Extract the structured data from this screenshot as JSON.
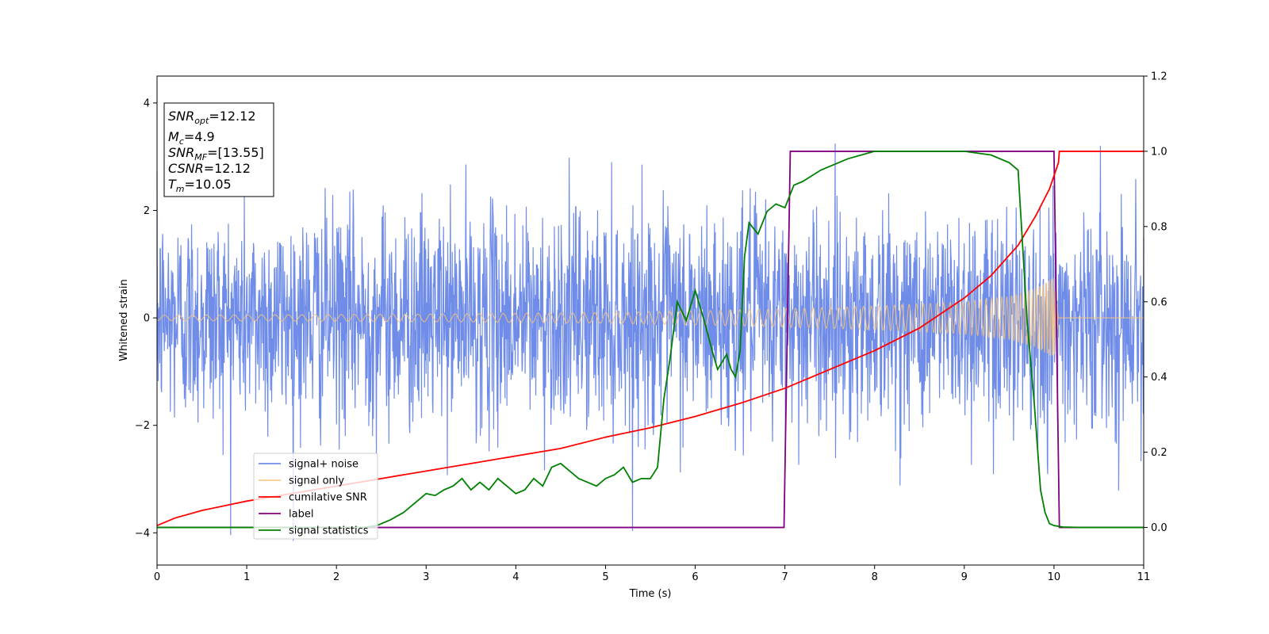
{
  "chart_data": {
    "type": "line",
    "xlabel": "Time (s)",
    "ylabel": "Whitened strain",
    "xlim": [
      0,
      11
    ],
    "ylim": [
      -4.6,
      4.5
    ],
    "y2lim": [
      -0.1,
      1.2
    ],
    "x_ticks": [
      0,
      1,
      2,
      3,
      4,
      5,
      6,
      7,
      8,
      9,
      10,
      11
    ],
    "x_tick_labels": [
      "0",
      "1",
      "2",
      "3",
      "4",
      "5",
      "6",
      "7",
      "8",
      "9",
      "10",
      "11"
    ],
    "y_ticks": [
      -4,
      -2,
      0,
      2,
      4
    ],
    "y_tick_labels": [
      "−4",
      "−2",
      "0",
      "2",
      "4"
    ],
    "y2_ticks": [
      0.0,
      0.2,
      0.4,
      0.6,
      0.8,
      1.0,
      1.2
    ],
    "y2_tick_labels": [
      "0.0",
      "0.2",
      "0.4",
      "0.6",
      "0.8",
      "1.0",
      "1.2"
    ],
    "grid": false,
    "legend_position": "lower-left",
    "info_box": {
      "snr_opt": {
        "main": "SNR",
        "sub": "opt",
        "rest": "=12.12"
      },
      "mc": {
        "main": "M",
        "sub": "c",
        "rest": "=4.9"
      },
      "snr_mf": {
        "main": "SNR",
        "sub": "MF",
        "rest": "=[13.55]"
      },
      "csnr": {
        "main": "CSNR",
        "rest": "=12.12"
      },
      "tm": {
        "main": "T",
        "sub": "m",
        "rest": "=10.05"
      }
    },
    "series": [
      {
        "name": "signal+ noise",
        "axis": "left",
        "color": "#6f8ce8",
        "kind": "gaussian noise plus chirp, standard deviation about 1.0, ends at t = 11",
        "noise_std": 1.0,
        "x_end": 11
      },
      {
        "name": "signal only",
        "axis": "left",
        "color": "#f5c27a",
        "kind": "chirp with growing amplitude, merging at t = 10.05, zero afterwards",
        "merger_time": 10.05,
        "amplitude_points": [
          [
            0,
            0.05
          ],
          [
            3,
            0.07
          ],
          [
            5,
            0.1
          ],
          [
            6,
            0.13
          ],
          [
            7,
            0.17
          ],
          [
            8,
            0.22
          ],
          [
            9,
            0.3
          ],
          [
            9.5,
            0.4
          ],
          [
            9.8,
            0.55
          ],
          [
            10.0,
            0.75
          ],
          [
            10.05,
            0.0
          ]
        ]
      },
      {
        "name": "cumilative SNR",
        "axis": "right",
        "color": "#ff0000",
        "x": [
          0,
          0.05,
          0.2,
          0.5,
          1,
          1.5,
          2,
          2.5,
          3,
          3.5,
          4,
          4.5,
          5,
          5.5,
          6,
          6.5,
          7,
          7.5,
          8,
          8.5,
          9,
          9.3,
          9.6,
          9.8,
          9.95,
          10.05,
          10.06,
          11
        ],
        "y": [
          0.005,
          0.01,
          0.025,
          0.045,
          0.07,
          0.09,
          0.11,
          0.13,
          0.15,
          0.17,
          0.19,
          0.21,
          0.24,
          0.265,
          0.295,
          0.33,
          0.37,
          0.42,
          0.47,
          0.53,
          0.61,
          0.67,
          0.75,
          0.83,
          0.9,
          0.97,
          1.0,
          1.0
        ]
      },
      {
        "name": "label",
        "axis": "right",
        "color": "#800080",
        "x": [
          0,
          6.99,
          7.06,
          10.0,
          10.06,
          11
        ],
        "y": [
          0,
          0,
          1,
          1,
          0,
          0
        ]
      },
      {
        "name": "signal statistics",
        "axis": "right",
        "color": "#008000",
        "x": [
          0,
          2.3,
          2.45,
          2.6,
          2.75,
          2.9,
          3.0,
          3.1,
          3.2,
          3.3,
          3.4,
          3.5,
          3.6,
          3.7,
          3.8,
          3.9,
          4.0,
          4.1,
          4.2,
          4.3,
          4.4,
          4.5,
          4.6,
          4.7,
          4.8,
          4.9,
          5.0,
          5.1,
          5.2,
          5.3,
          5.4,
          5.5,
          5.58,
          5.65,
          5.72,
          5.8,
          5.9,
          6.0,
          6.1,
          6.2,
          6.25,
          6.3,
          6.35,
          6.4,
          6.45,
          6.5,
          6.55,
          6.6,
          6.7,
          6.8,
          6.9,
          7.0,
          7.1,
          7.2,
          7.4,
          7.6,
          7.7,
          7.85,
          8.0,
          8.5,
          9.0,
          9.3,
          9.5,
          9.6,
          9.7,
          9.78,
          9.85,
          9.9,
          9.95,
          10.0,
          10.1,
          10.3,
          11.0
        ],
        "y": [
          0,
          0,
          0.005,
          0.02,
          0.04,
          0.07,
          0.09,
          0.085,
          0.1,
          0.11,
          0.13,
          0.1,
          0.12,
          0.1,
          0.13,
          0.11,
          0.09,
          0.1,
          0.13,
          0.11,
          0.16,
          0.17,
          0.15,
          0.13,
          0.12,
          0.11,
          0.13,
          0.14,
          0.16,
          0.12,
          0.13,
          0.13,
          0.16,
          0.34,
          0.45,
          0.6,
          0.55,
          0.63,
          0.55,
          0.46,
          0.42,
          0.44,
          0.46,
          0.42,
          0.4,
          0.47,
          0.72,
          0.81,
          0.78,
          0.84,
          0.86,
          0.85,
          0.91,
          0.92,
          0.95,
          0.97,
          0.98,
          0.99,
          1.0,
          1.0,
          1.0,
          0.99,
          0.97,
          0.95,
          0.55,
          0.33,
          0.1,
          0.04,
          0.01,
          0.005,
          0.001,
          0,
          0
        ]
      }
    ]
  }
}
